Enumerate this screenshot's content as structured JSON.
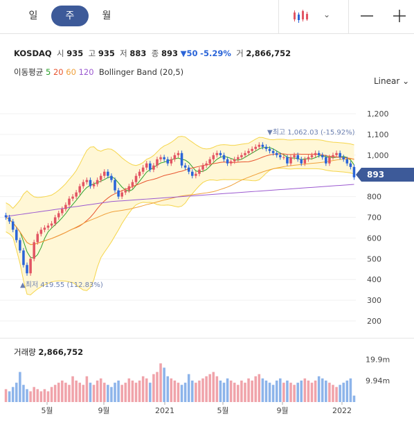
{
  "periods": [
    {
      "label": "일",
      "active": false
    },
    {
      "label": "주",
      "active": true
    },
    {
      "label": "월",
      "active": false
    }
  ],
  "toolbar": {
    "chart_type_icon": "candlestick-icon",
    "caret": "⌄",
    "minus": "—",
    "plus": "+"
  },
  "quote": {
    "name": "KOSDAQ",
    "open_label": "시",
    "open": "935",
    "high_label": "고",
    "high": "935",
    "low_label": "저",
    "low": "883",
    "close_label": "종",
    "close": "893",
    "change": "▼50",
    "change_pct": "-5.29%",
    "volume_label": "거",
    "volume": "2,866,752"
  },
  "indicators": {
    "ma_label": "이동평균",
    "ma_periods": [
      {
        "label": "5",
        "color": "#2ba02b"
      },
      {
        "label": "20",
        "color": "#e8542e"
      },
      {
        "label": "60",
        "color": "#f0a03a"
      },
      {
        "label": "120",
        "color": "#9b59d0"
      }
    ],
    "bollinger": "Bollinger Band (20,5)"
  },
  "scale": "Linear ⌄",
  "current_price": "893",
  "colors": {
    "up": "#e25563",
    "down": "#2a64d8",
    "band_fill": "#fff7d6",
    "band_line": "#f5d54a",
    "accent": "#3d5a99"
  },
  "chart_data": {
    "type": "candlestick",
    "y_ticks": [
      "1,200",
      "1,100",
      "1,000",
      "900",
      "800",
      "700",
      "600",
      "500",
      "400",
      "300",
      "200"
    ],
    "x_ticks": [
      "5월",
      "9월",
      "2021",
      "5월",
      "9월",
      "2022"
    ],
    "high_annotation": "▼최고 1,062.03 (-15.92%)",
    "low_annotation": "▲최저 419.55 (112.83%)",
    "volume_label": "거래량",
    "volume_value": "2,866,752",
    "volume_ticks": [
      "19.9m",
      "9.94m"
    ],
    "ylim": [
      160,
      1230
    ],
    "candles_close": [
      700,
      680,
      640,
      590,
      540,
      470,
      430,
      500,
      580,
      620,
      640,
      650,
      660,
      670,
      700,
      720,
      740,
      760,
      790,
      800,
      820,
      850,
      870,
      880,
      850,
      860,
      880,
      900,
      920,
      900,
      880,
      830,
      800,
      820,
      830,
      850,
      870,
      900,
      920,
      940,
      960,
      930,
      950,
      980,
      990,
      980,
      960,
      980,
      1000,
      1010,
      950,
      940,
      920,
      900,
      910,
      930,
      950,
      960,
      980,
      1000,
      1010,
      1000,
      980,
      960,
      970,
      980,
      990,
      1000,
      1010,
      1020,
      1030,
      1040,
      1050,
      1040,
      1030,
      1020,
      1010,
      1000,
      990,
      990,
      960,
      990,
      1000,
      980,
      960,
      980,
      990,
      1000,
      1010,
      1000,
      990,
      960,
      990,
      1000,
      1010,
      990,
      980,
      960,
      943,
      893
    ],
    "volumes": [
      6,
      5,
      7,
      9,
      14,
      8,
      6,
      5,
      7,
      6,
      5,
      6,
      5,
      7,
      8,
      9,
      10,
      9,
      8,
      12,
      10,
      9,
      8,
      12,
      9,
      8,
      10,
      11,
      9,
      8,
      7,
      9,
      10,
      8,
      9,
      11,
      10,
      9,
      10,
      12,
      11,
      9,
      13,
      14,
      18,
      16,
      12,
      11,
      10,
      9,
      8,
      9,
      13,
      10,
      9,
      10,
      11,
      12,
      13,
      14,
      12,
      10,
      9,
      11,
      10,
      9,
      8,
      10,
      9,
      11,
      10,
      12,
      13,
      11,
      10,
      9,
      8,
      10,
      11,
      9,
      10,
      9,
      8,
      9,
      10,
      11,
      10,
      9,
      10,
      12,
      11,
      10,
      9,
      8,
      7,
      8,
      9,
      10,
      11,
      3
    ]
  }
}
